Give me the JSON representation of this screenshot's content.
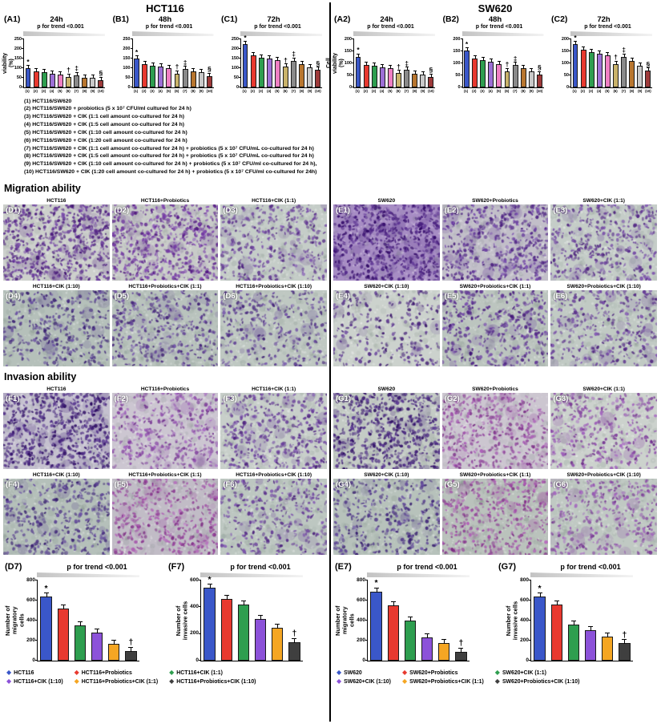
{
  "header": {
    "left_title": "HCT116",
    "right_title": "SW620"
  },
  "palettes": {
    "viability": [
      "#3a57c9",
      "#e8392f",
      "#2e9e4f",
      "#9d6fd6",
      "#ef7fc3",
      "#c9b36a",
      "#8a8a8a",
      "#b8762f",
      "#c9c9c9",
      "#9e3a3a"
    ],
    "series": [
      "#3a57c9",
      "#e8392f",
      "#2e9e4f",
      "#8c52d9",
      "#f5a623",
      "#3f3f3f"
    ]
  },
  "condition_lines": [
    "(1) HCT116/SW620",
    "(2) HCT116/SW620 + probiotics (5 x 10⁷ CFU/ml cultured for 24 h)",
    "(3) HCT116/SW620 + CIK (1:1 cell amount co-cultured for 24 h)",
    "(4) HCT116/SW620 + CIK (1:5 cell amount co-cultured for 24 h)",
    "(5) HCT116/SW620 + CIK (1:10 cell amount co-cultured for 24 h)",
    "(6) HCT116/SW620 + CIK (1:20 cell amount co-cultured for 24 h)",
    "(7) HCT116/SW620 + CIK (1:1 cell amount co-cultured for 24 h) + probiotics (5 x 10⁷ CFU/mL co-cultured for 24 h)",
    "(8) HCT116/SW620 + CIK (1:5 cell amount co-cultured for 24 h) + probiotics (5 x 10⁷ CFU/mL co-cultured for 24 h)",
    "(9) HCT116/SW620 + CIK (1:10 cell amount co-cultured for 24 h) + probiotics (5 x 10⁷ CFU/ml co-cultured for 24 h),",
    "(10) HCT116/SW620 + CIK (1:20 cell amount co-cultured for 24 h) + probiotics (5 x 10⁷ CFU/ml co-cultured for 24h)"
  ],
  "chart_data": [
    {
      "id": "(A1)",
      "title": "24h",
      "sub": "p for trend <0.001",
      "type": "bar",
      "palette": "viability",
      "ylabel": "Cell viability (%)",
      "ylim": [
        0,
        250
      ],
      "yticks": [
        0,
        50,
        100,
        150,
        200,
        250
      ],
      "xlabels": [
        "(1)",
        "(2)",
        "(3)",
        "(4)",
        "(5)",
        "(6)",
        "(7)",
        "(8)",
        "(9)",
        "(10)"
      ],
      "values": [
        100,
        85,
        78,
        72,
        68,
        55,
        63,
        52,
        48,
        38
      ],
      "markers": {
        "0": "*",
        "5": "†",
        "6": "‡",
        "9": "§"
      }
    },
    {
      "id": "(B1)",
      "title": "48h",
      "sub": "p for trend <0.001",
      "type": "bar",
      "palette": "viability",
      "ylabel": null,
      "ylim": [
        0,
        250
      ],
      "yticks": [
        0,
        50,
        100,
        150,
        200,
        250
      ],
      "xlabels": [
        "(1)",
        "(2)",
        "(3)",
        "(4)",
        "(5)",
        "(6)",
        "(7)",
        "(8)",
        "(9)",
        "(10)"
      ],
      "values": [
        150,
        122,
        113,
        107,
        100,
        72,
        95,
        85,
        78,
        60
      ],
      "markers": {
        "0": "*",
        "5": "†",
        "6": "‡",
        "9": "§"
      }
    },
    {
      "id": "(C1)",
      "title": "72h",
      "sub": "p for trend <0.001",
      "type": "bar",
      "palette": "viability",
      "ylabel": null,
      "ylim": [
        0,
        250
      ],
      "yticks": [
        0,
        50,
        100,
        150,
        200,
        250
      ],
      "xlabels": [
        "(1)",
        "(2)",
        "(3)",
        "(4)",
        "(5)",
        "(6)",
        "(7)",
        "(8)",
        "(9)",
        "(10)"
      ],
      "values": [
        225,
        165,
        155,
        148,
        142,
        108,
        138,
        122,
        105,
        90
      ],
      "markers": {
        "0": "*",
        "5": "†",
        "6": "‡",
        "9": "§"
      }
    },
    {
      "id": "(A2)",
      "title": "24h",
      "sub": "p for trend <0.001",
      "type": "bar",
      "palette": "viability",
      "ylabel": "Cell viability (%)",
      "ylim": [
        0,
        200
      ],
      "yticks": [
        0,
        50,
        100,
        150,
        200
      ],
      "xlabels": [
        "(1)",
        "(2)",
        "(3)",
        "(4)",
        "(5)",
        "(6)",
        "(7)",
        "(8)",
        "(9)",
        "(10)"
      ],
      "values": [
        128,
        95,
        90,
        85,
        80,
        60,
        72,
        58,
        52,
        45
      ],
      "markers": {
        "0": "*",
        "5": "†",
        "6": "‡",
        "9": "§"
      }
    },
    {
      "id": "(B2)",
      "title": "48h",
      "sub": "p for trend <0.001",
      "type": "bar",
      "palette": "viability",
      "ylabel": null,
      "ylim": [
        0,
        200
      ],
      "yticks": [
        0,
        50,
        100,
        150,
        200
      ],
      "xlabels": [
        "(1)",
        "(2)",
        "(3)",
        "(4)",
        "(5)",
        "(6)",
        "(7)",
        "(8)",
        "(9)",
        "(10)"
      ],
      "values": [
        152,
        120,
        112,
        106,
        98,
        68,
        92,
        80,
        68,
        55
      ],
      "markers": {
        "0": "*",
        "5": "†",
        "6": "‡",
        "9": "§"
      }
    },
    {
      "id": "(C2)",
      "title": "72h",
      "sub": "p for trend <0.001",
      "type": "bar",
      "palette": "viability",
      "ylabel": null,
      "ylim": [
        0,
        200
      ],
      "yticks": [
        0,
        50,
        100,
        150,
        200
      ],
      "xlabels": [
        "(1)",
        "(2)",
        "(3)",
        "(4)",
        "(5)",
        "(6)",
        "(7)",
        "(8)",
        "(9)",
        "(10)"
      ],
      "values": [
        180,
        158,
        148,
        140,
        132,
        98,
        128,
        110,
        90,
        70
      ],
      "markers": {
        "0": "*",
        "5": "†",
        "6": "‡",
        "9": "§"
      }
    },
    {
      "id": "(D7)",
      "title": "",
      "sub": "p for trend <0.001",
      "type": "bar",
      "palette": "series",
      "ylabel": "Number of\nmigratory cells",
      "ylim": [
        0,
        800
      ],
      "yticks": [
        0,
        200,
        400,
        600,
        800
      ],
      "xlabels": null,
      "values": [
        640,
        520,
        350,
        280,
        165,
        100
      ],
      "markers": {
        "0": "*",
        "5": "†"
      }
    },
    {
      "id": "(F7)",
      "title": "",
      "sub": "p for trend <0.001",
      "type": "bar",
      "palette": "series",
      "ylabel": "Number of\ninvasive cells",
      "ylim": [
        0,
        600
      ],
      "yticks": [
        0,
        200,
        400,
        600
      ],
      "xlabels": null,
      "values": [
        545,
        462,
        420,
        310,
        248,
        140
      ],
      "markers": {
        "0": "*",
        "5": "†"
      }
    },
    {
      "id": "(E7)",
      "title": "",
      "sub": "p for trend <0.001",
      "type": "bar",
      "palette": "series",
      "ylabel": "Number of\nmigratory cells",
      "ylim": [
        0,
        800
      ],
      "yticks": [
        0,
        200,
        400,
        600,
        800
      ],
      "xlabels": null,
      "values": [
        690,
        550,
        400,
        235,
        180,
        90
      ],
      "markers": {
        "0": "*",
        "5": "†"
      }
    },
    {
      "id": "(G7)",
      "title": "",
      "sub": "p for trend <0.001",
      "type": "bar",
      "palette": "series",
      "ylabel": "Number of\ninvasive cells",
      "ylim": [
        0,
        800
      ],
      "yticks": [
        0,
        200,
        400,
        600,
        800
      ],
      "xlabels": null,
      "values": [
        640,
        560,
        360,
        305,
        240,
        175
      ],
      "markers": {
        "0": "*",
        "5": "†"
      }
    }
  ],
  "micro": {
    "migration_label": "Migration ability",
    "invasion_label": "Invasion ability",
    "migration_left": [
      {
        "label": "(D1)",
        "title": "HCT116",
        "bg": "#cdd0cc",
        "dot": "#5a2b8c",
        "density": 0.95
      },
      {
        "label": "(D2)",
        "title": "HCT116+Probiotics",
        "bg": "#c8cbc8",
        "dot": "#6b329a",
        "density": 0.85
      },
      {
        "label": "(D3)",
        "title": "HCT116+CIK (1:1)",
        "bg": "#c5cdc8",
        "dot": "#653a96",
        "density": 0.55
      },
      {
        "label": "(D4)",
        "title": "HCT116+CIK (1:10)",
        "bg": "#b5c0ba",
        "dot": "#4f3588",
        "density": 0.5
      },
      {
        "label": "(D5)",
        "title": "HCT116+Probiotics+CIK (1:1)",
        "bg": "#b9c3bd",
        "dot": "#59388f",
        "density": 0.55
      },
      {
        "label": "(D6)",
        "title": "HCT116+Probiotics+CIK (1:10)",
        "bg": "#bfc8c2",
        "dot": "#59388f",
        "density": 0.45
      }
    ],
    "migration_right": [
      {
        "label": "(E1)",
        "title": "SW620",
        "bg": "#a78dc4",
        "dot": "#481f7e",
        "density": 1.0
      },
      {
        "label": "(E2)",
        "title": "SW620+Probiotics",
        "bg": "#c2bfc9",
        "dot": "#5f3494",
        "density": 0.8
      },
      {
        "label": "(E3)",
        "title": "SW620+CIK (1:1)",
        "bg": "#c5cdc8",
        "dot": "#653a96",
        "density": 0.6
      },
      {
        "label": "(E4)",
        "title": "SW620+CIK (1:10)",
        "bg": "#ccd2cd",
        "dot": "#4f2a82",
        "density": 0.38
      },
      {
        "label": "(E5)",
        "title": "SW620+Probiotics+CIK (1:1)",
        "bg": "#bcc5bf",
        "dot": "#5f3494",
        "density": 0.62
      },
      {
        "label": "(E6)",
        "title": "SW620+Probiotics+CIK (1:10)",
        "bg": "#c1cac4",
        "dot": "#653a96",
        "density": 0.5
      }
    ],
    "invasion_left": [
      {
        "label": "(F1)",
        "title": "HCT116",
        "bg": "#c5c1cf",
        "dot": "#43217a",
        "density": 0.95
      },
      {
        "label": "(F2)",
        "title": "HCT116+Probiotics",
        "bg": "#ccc6d1",
        "dot": "#8a4aa6",
        "density": 0.6
      },
      {
        "label": "(F3)",
        "title": "HCT116+CIK (1:1)",
        "bg": "#c8cfca",
        "dot": "#653a96",
        "density": 0.65
      },
      {
        "label": "(F4)",
        "title": "HCT116+CIK (1:10)",
        "bg": "#b5c0ba",
        "dot": "#4f3588",
        "density": 0.52
      },
      {
        "label": "(F5)",
        "title": "HCT116+Probiotics+CIK (1:1)",
        "bg": "#c1bcc6",
        "dot": "#99479f",
        "density": 0.6
      },
      {
        "label": "(F6)",
        "title": "HCT116+Probiotics+CIK (1:10)",
        "bg": "#bdc7c1",
        "dot": "#653a96",
        "density": 0.48
      }
    ],
    "invasion_right": [
      {
        "label": "(G1)",
        "title": "SW620",
        "bg": "#c4cbc5",
        "dot": "#43217a",
        "density": 0.88
      },
      {
        "label": "(G2)",
        "title": "SW620+Probiotics",
        "bg": "#ccc6d0",
        "dot": "#93479f",
        "density": 0.62
      },
      {
        "label": "(G3)",
        "title": "SW620+CIK (1:1)",
        "bg": "#ccd2cd",
        "dot": "#8a4aa6",
        "density": 0.55
      },
      {
        "label": "(G4)",
        "title": "SW620+CIK (1:10)",
        "bg": "#b7c2bb",
        "dot": "#4f3588",
        "density": 0.52
      },
      {
        "label": "(G5)",
        "title": "SW620+Probiotics+CIK (1:1)",
        "bg": "#bac2bc",
        "dot": "#99479f",
        "density": 0.62
      },
      {
        "label": "(G6)",
        "title": "SW620+Probiotics+CIK (1:10)",
        "bg": "#c0c9c3",
        "dot": "#8a4aa6",
        "density": 0.5
      }
    ]
  },
  "series_legend": {
    "left": [
      {
        "label": "HCT116",
        "color": "#3a57c9"
      },
      {
        "label": "HCT116+Probiotics",
        "color": "#e8392f"
      },
      {
        "label": "HCT116+CIK (1:1)",
        "color": "#2e9e4f"
      },
      {
        "label": "HCT116+CIK (1:10)",
        "color": "#8c52d9"
      },
      {
        "label": "HCT116+Probiotics+CIK (1:1)",
        "color": "#f5a623"
      },
      {
        "label": "HCT116+Probiotics+CIK (1:10)",
        "color": "#3f3f3f"
      }
    ],
    "right": [
      {
        "label": "SW620",
        "color": "#3a57c9"
      },
      {
        "label": "SW620+Probiotics",
        "color": "#e8392f"
      },
      {
        "label": "SW620+CIK (1:1)",
        "color": "#2e9e4f"
      },
      {
        "label": "SW620+CIK (1:10)",
        "color": "#8c52d9"
      },
      {
        "label": "SW620+Probiotics+CIK (1:1)",
        "color": "#f5a623"
      },
      {
        "label": "SW620+Probiotics+CIK (1:10)",
        "color": "#3f3f3f"
      }
    ]
  }
}
